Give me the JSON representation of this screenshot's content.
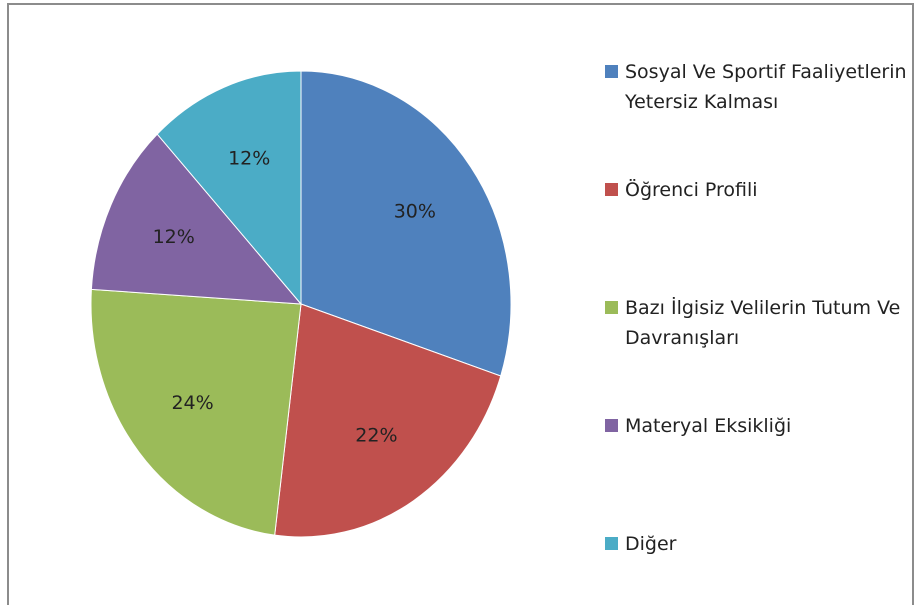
{
  "chart_data": {
    "type": "pie",
    "categories": [
      "Sosyal Ve Sportif Faaliyetlerin Yetersiz Kalması",
      "Öğrenci Profili",
      "Bazı İlgisiz Velilerin Tutum Ve Davranışları",
      "Materyal Eksikliği",
      "Diğer"
    ],
    "values": [
      30,
      22,
      24,
      12,
      12
    ],
    "value_labels": [
      "30%",
      "22%",
      "24%",
      "12%",
      "12%"
    ],
    "colors": [
      "#4F81BD",
      "#C0504D",
      "#9BBB59",
      "#8064A2",
      "#4BACC6"
    ],
    "legend": "right"
  }
}
